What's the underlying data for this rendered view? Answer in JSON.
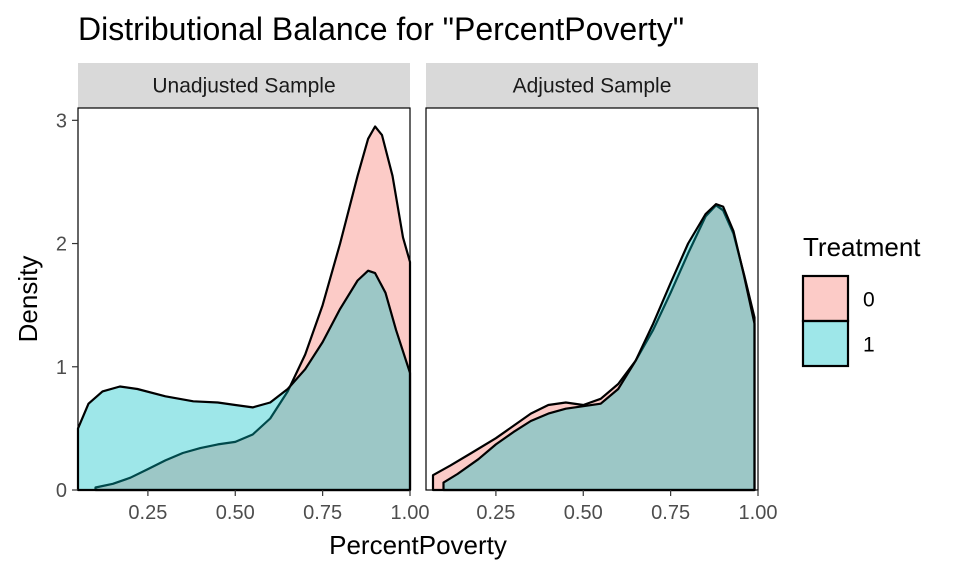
{
  "chart_data": {
    "type": "area",
    "title": "Distributional Balance for \"PercentPoverty\"",
    "xlabel": "PercentPoverty",
    "ylabel": "Density",
    "xlim": [
      0.05,
      1.0
    ],
    "ylim": [
      0,
      3.1
    ],
    "x_ticks": [
      "0.25",
      "0.50",
      "0.75",
      "1.00"
    ],
    "y_ticks": [
      "0",
      "1",
      "2",
      "3"
    ],
    "grid": false,
    "legend": {
      "title": "Treatment",
      "placement": "right",
      "entries": [
        {
          "label": "0",
          "color": "#F8766D"
        },
        {
          "label": "1",
          "color": "#00BFC4"
        }
      ]
    },
    "panels": [
      {
        "name": "Unadjusted Sample",
        "series": [
          {
            "name": "0",
            "color": "#F8766D",
            "points": [
              [
                0.1,
                0.02
              ],
              [
                0.15,
                0.05
              ],
              [
                0.2,
                0.1
              ],
              [
                0.25,
                0.17
              ],
              [
                0.3,
                0.24
              ],
              [
                0.35,
                0.3
              ],
              [
                0.4,
                0.34
              ],
              [
                0.45,
                0.37
              ],
              [
                0.5,
                0.39
              ],
              [
                0.55,
                0.45
              ],
              [
                0.6,
                0.58
              ],
              [
                0.65,
                0.8
              ],
              [
                0.7,
                1.1
              ],
              [
                0.75,
                1.5
              ],
              [
                0.8,
                2.0
              ],
              [
                0.85,
                2.55
              ],
              [
                0.88,
                2.85
              ],
              [
                0.9,
                2.95
              ],
              [
                0.92,
                2.88
              ],
              [
                0.95,
                2.55
              ],
              [
                0.98,
                2.05
              ],
              [
                1.0,
                1.85
              ]
            ]
          },
          {
            "name": "1",
            "color": "#00BFC4",
            "points": [
              [
                0.05,
                0.5
              ],
              [
                0.08,
                0.7
              ],
              [
                0.12,
                0.8
              ],
              [
                0.17,
                0.84
              ],
              [
                0.22,
                0.82
              ],
              [
                0.3,
                0.76
              ],
              [
                0.38,
                0.72
              ],
              [
                0.45,
                0.71
              ],
              [
                0.5,
                0.69
              ],
              [
                0.55,
                0.67
              ],
              [
                0.6,
                0.71
              ],
              [
                0.65,
                0.82
              ],
              [
                0.7,
                0.98
              ],
              [
                0.75,
                1.2
              ],
              [
                0.8,
                1.47
              ],
              [
                0.85,
                1.7
              ],
              [
                0.88,
                1.78
              ],
              [
                0.9,
                1.76
              ],
              [
                0.93,
                1.6
              ],
              [
                0.96,
                1.3
              ],
              [
                1.0,
                0.95
              ]
            ]
          }
        ]
      },
      {
        "name": "Adjusted Sample",
        "series": [
          {
            "name": "0",
            "color": "#F8766D",
            "points": [
              [
                0.07,
                0.12
              ],
              [
                0.12,
                0.2
              ],
              [
                0.18,
                0.3
              ],
              [
                0.25,
                0.42
              ],
              [
                0.3,
                0.52
              ],
              [
                0.35,
                0.62
              ],
              [
                0.4,
                0.69
              ],
              [
                0.45,
                0.71
              ],
              [
                0.5,
                0.69
              ],
              [
                0.55,
                0.74
              ],
              [
                0.6,
                0.86
              ],
              [
                0.65,
                1.05
              ],
              [
                0.7,
                1.3
              ],
              [
                0.75,
                1.6
              ],
              [
                0.8,
                1.92
              ],
              [
                0.85,
                2.22
              ],
              [
                0.88,
                2.31
              ],
              [
                0.9,
                2.27
              ],
              [
                0.93,
                2.08
              ],
              [
                0.96,
                1.75
              ],
              [
                0.99,
                1.4
              ]
            ]
          },
          {
            "name": "1",
            "color": "#00BFC4",
            "points": [
              [
                0.1,
                0.06
              ],
              [
                0.14,
                0.13
              ],
              [
                0.2,
                0.25
              ],
              [
                0.25,
                0.37
              ],
              [
                0.3,
                0.47
              ],
              [
                0.35,
                0.56
              ],
              [
                0.4,
                0.62
              ],
              [
                0.45,
                0.66
              ],
              [
                0.5,
                0.68
              ],
              [
                0.55,
                0.7
              ],
              [
                0.6,
                0.82
              ],
              [
                0.65,
                1.05
              ],
              [
                0.7,
                1.35
              ],
              [
                0.75,
                1.68
              ],
              [
                0.8,
                2.0
              ],
              [
                0.85,
                2.24
              ],
              [
                0.88,
                2.32
              ],
              [
                0.9,
                2.3
              ],
              [
                0.93,
                2.1
              ],
              [
                0.96,
                1.74
              ],
              [
                0.99,
                1.35
              ]
            ]
          }
        ]
      }
    ]
  }
}
